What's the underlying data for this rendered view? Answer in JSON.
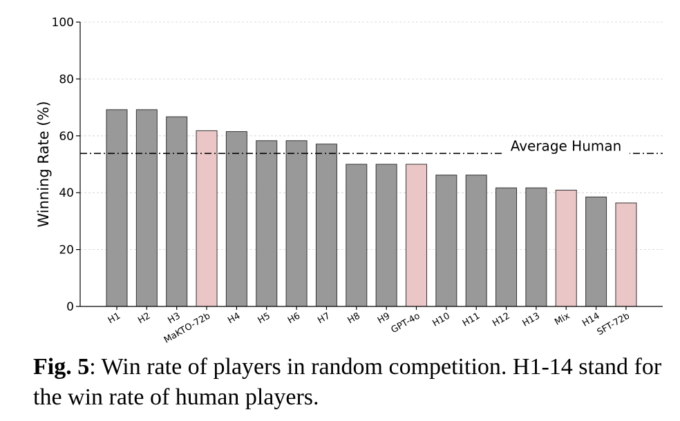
{
  "chart_data": {
    "type": "bar",
    "categories": [
      "H1",
      "H2",
      "H3",
      "MaKTO-72b",
      "H4",
      "H5",
      "H6",
      "H7",
      "H8",
      "H9",
      "GPT-4o",
      "H10",
      "H11",
      "H12",
      "H13",
      "Mix",
      "H14",
      "SFT-72b"
    ],
    "values": [
      69.2,
      69.2,
      66.7,
      61.8,
      61.5,
      58.3,
      58.3,
      57.1,
      50.0,
      50.0,
      50.0,
      46.2,
      46.2,
      41.7,
      41.7,
      40.9,
      38.5,
      36.4
    ],
    "highlight": [
      false,
      false,
      false,
      true,
      false,
      false,
      false,
      false,
      false,
      false,
      true,
      false,
      false,
      false,
      false,
      true,
      false,
      true
    ],
    "colors": {
      "human": "#999999",
      "model": "#ebc6c6",
      "edge": "#333333"
    },
    "ylabel": "Winning Rate (%)",
    "xlabel": "",
    "ylim": [
      0,
      100
    ],
    "yticks": [
      0,
      20,
      40,
      60,
      80,
      100
    ],
    "grid": true,
    "reference_line": {
      "value": 53.8,
      "label": "Average Human",
      "style": "dash-dot"
    }
  },
  "caption": {
    "label": "Fig. 5",
    "text": ": Win rate of players in random competition. H1-14 stand for the win rate of human players."
  }
}
